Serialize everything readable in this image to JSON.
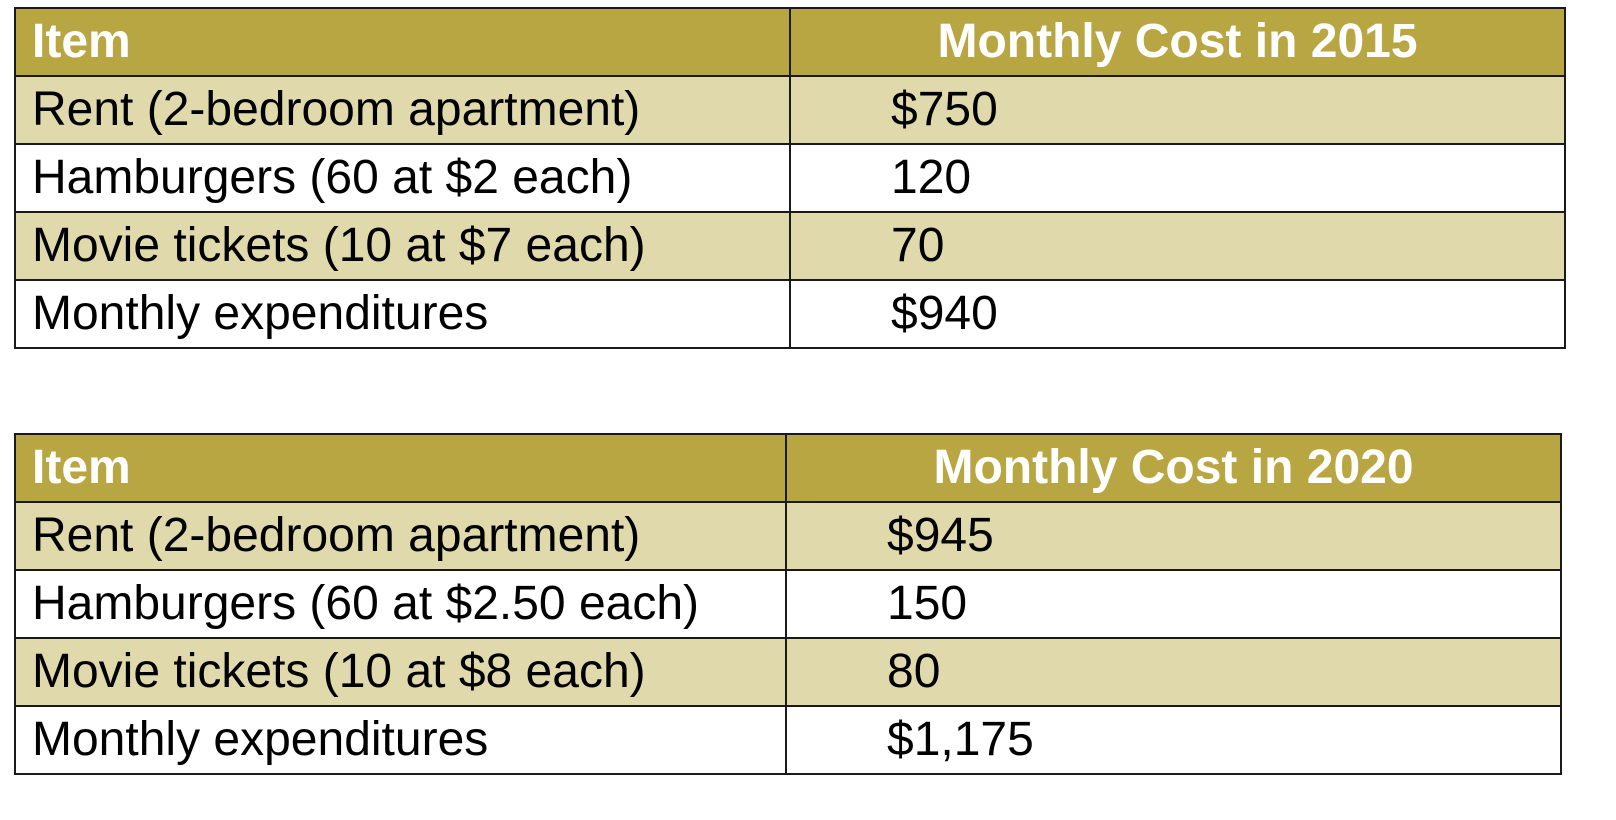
{
  "tables": [
    {
      "header": {
        "item": "Item",
        "cost": "Monthly Cost in 2015"
      },
      "rows": [
        {
          "item": "Rent (2-bedroom apartment)",
          "cost": "$750"
        },
        {
          "item": "Hamburgers (60 at $2 each)",
          "cost": "120"
        },
        {
          "item": "Movie tickets (10 at $7 each)",
          "cost": "70"
        },
        {
          "item": "Monthly expenditures",
          "cost": "$940"
        }
      ]
    },
    {
      "header": {
        "item": "Item",
        "cost": "Monthly Cost in 2020"
      },
      "rows": [
        {
          "item": "Rent (2-bedroom apartment)",
          "cost": "$945"
        },
        {
          "item": "Hamburgers (60 at $2.50 each)",
          "cost": "150"
        },
        {
          "item": "Movie tickets (10 at $8 each)",
          "cost": "80"
        },
        {
          "item": "Monthly expenditures",
          "cost": "$1,175"
        }
      ]
    }
  ],
  "colors": {
    "header_bg": "#b8a642",
    "header_text": "#ffffff",
    "shaded_row": "#e0d9ab",
    "plain_row": "#ffffff"
  }
}
